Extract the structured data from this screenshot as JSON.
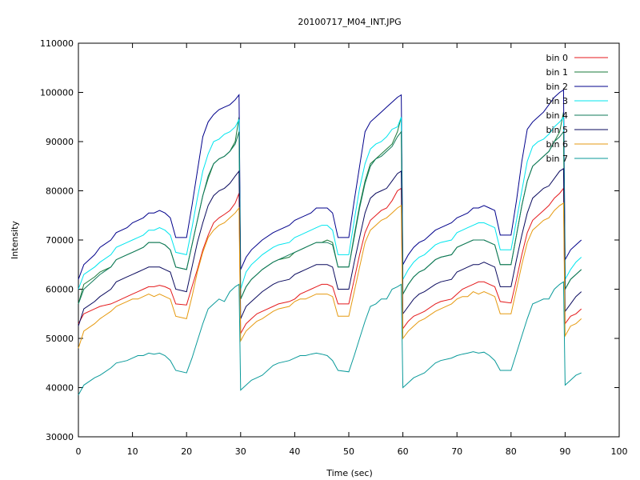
{
  "chart_data": {
    "type": "line",
    "title": "20100717_M04_INT.JPG",
    "xlabel": "Time (sec)",
    "ylabel": "Intensity",
    "xlim": [
      0,
      100
    ],
    "ylim": [
      30000,
      110000
    ],
    "x_ticks": [
      0,
      10,
      20,
      30,
      40,
      50,
      60,
      70,
      80,
      90,
      100
    ],
    "y_ticks": [
      30000,
      40000,
      50000,
      60000,
      70000,
      80000,
      90000,
      100000,
      110000
    ],
    "grid": false,
    "legend_position": "top-right",
    "x": [
      0,
      1,
      3,
      4,
      6,
      7,
      9,
      10,
      11,
      12,
      13,
      14,
      15,
      16,
      17,
      18,
      20,
      21,
      22,
      23,
      24,
      25,
      26,
      27,
      28,
      29,
      29.7,
      30,
      31,
      32,
      33,
      34,
      36,
      37,
      39,
      40,
      41,
      42,
      43,
      44,
      45,
      46,
      47,
      48,
      50,
      51,
      52,
      53,
      54,
      55,
      56,
      57,
      58,
      59,
      59.7,
      60,
      61,
      62,
      63,
      64,
      66,
      67,
      69,
      70,
      71,
      72,
      73,
      74,
      75,
      76,
      77,
      78,
      80,
      81,
      82,
      83,
      84,
      85,
      86,
      87,
      88,
      89,
      89.7,
      90,
      91,
      92,
      93
    ],
    "series": [
      {
        "name": "bin 0",
        "color": "#e41a1c",
        "values": [
          53000,
          55000,
          56000,
          56500,
          57000,
          57500,
          58500,
          59000,
          59500,
          60000,
          60500,
          60500,
          60800,
          60500,
          60000,
          57000,
          56800,
          60500,
          64000,
          68000,
          71000,
          73500,
          74500,
          75200,
          76000,
          77500,
          79500,
          51000,
          53000,
          54000,
          55000,
          55500,
          56500,
          57000,
          57500,
          58000,
          59000,
          59500,
          60000,
          60500,
          61000,
          61000,
          60500,
          57000,
          57000,
          62000,
          67000,
          71500,
          74000,
          75000,
          76000,
          76500,
          78000,
          80000,
          80500,
          52000,
          53500,
          54500,
          55000,
          55500,
          57000,
          57500,
          58000,
          59000,
          60000,
          60500,
          61000,
          61500,
          61500,
          61000,
          60500,
          57500,
          57200,
          62000,
          67000,
          71500,
          74000,
          75000,
          76000,
          77000,
          78500,
          79500,
          80500,
          53000,
          54500,
          55000,
          56000
        ]
      },
      {
        "name": "bin 1",
        "color": "#1a7a3a",
        "values": [
          57000,
          61000,
          62500,
          63500,
          64500,
          66000,
          67000,
          67500,
          68000,
          68500,
          69500,
          69500,
          69500,
          69000,
          68000,
          64500,
          64000,
          69000,
          74000,
          79000,
          82500,
          85500,
          86500,
          87000,
          88000,
          90000,
          95000,
          58000,
          60500,
          62000,
          63000,
          64000,
          65500,
          66000,
          66500,
          67500,
          68000,
          68500,
          69000,
          69500,
          69500,
          70000,
          69500,
          64500,
          64500,
          71000,
          77000,
          82000,
          85500,
          86500,
          87500,
          88500,
          89500,
          92000,
          95000,
          59000,
          61000,
          62500,
          63500,
          64000,
          66000,
          66500,
          67000,
          68500,
          69000,
          69500,
          70000,
          70000,
          70000,
          69500,
          69000,
          65000,
          65000,
          71000,
          77000,
          82000,
          85000,
          86000,
          87000,
          88000,
          90000,
          92000,
          96000,
          60000,
          62000,
          63000,
          64000
        ]
      },
      {
        "name": "bin 2",
        "color": "#00008b",
        "values": [
          62000,
          65000,
          67000,
          68500,
          70000,
          71500,
          72500,
          73500,
          74000,
          74500,
          75500,
          75500,
          76000,
          75500,
          74500,
          70500,
          70500,
          77000,
          84000,
          91000,
          94000,
          95500,
          96500,
          97000,
          97500,
          98500,
          99500,
          64000,
          66500,
          68000,
          69000,
          70000,
          71500,
          72000,
          73000,
          74000,
          74500,
          75000,
          75500,
          76500,
          76500,
          76500,
          75500,
          70500,
          70500,
          78000,
          85000,
          92000,
          94000,
          95000,
          96000,
          97000,
          98000,
          99000,
          99500,
          65000,
          67000,
          68500,
          69500,
          70000,
          72000,
          72500,
          73500,
          74500,
          75000,
          75500,
          76500,
          76500,
          77000,
          76500,
          76000,
          71000,
          71000,
          78000,
          86000,
          92500,
          94000,
          95000,
          96000,
          97500,
          99000,
          100000,
          100500,
          66000,
          68000,
          69000,
          70000
        ]
      },
      {
        "name": "bin 3",
        "color": "#00e5ee",
        "values": [
          60000,
          63000,
          64500,
          65500,
          67000,
          68500,
          69500,
          70000,
          70500,
          71000,
          72000,
          72000,
          72500,
          72000,
          71000,
          67500,
          67000,
          72500,
          78500,
          84000,
          87500,
          90000,
          90500,
          91500,
          92000,
          93000,
          94500,
          60000,
          63500,
          65000,
          66000,
          67000,
          68500,
          69000,
          69500,
          70500,
          71000,
          71500,
          72000,
          72500,
          73000,
          73000,
          72000,
          67000,
          67000,
          74000,
          80500,
          85500,
          88500,
          89500,
          90000,
          91000,
          92500,
          93000,
          95000,
          62000,
          64000,
          65500,
          66500,
          67000,
          69000,
          69500,
          70000,
          71500,
          72000,
          72500,
          73000,
          73500,
          73500,
          73000,
          72500,
          68000,
          68000,
          74000,
          80000,
          86000,
          89000,
          90000,
          90500,
          91500,
          93000,
          94000,
          95000,
          62000,
          64000,
          65500,
          66500
        ]
      },
      {
        "name": "bin 4",
        "color": "#0f7a5a",
        "values": [
          57000,
          60000,
          62000,
          63000,
          64500,
          66000,
          67000,
          67500,
          68000,
          68500,
          69500,
          69500,
          69500,
          69000,
          68000,
          64500,
          64000,
          69000,
          74000,
          79000,
          83000,
          85500,
          86500,
          87000,
          88000,
          89500,
          92000,
          58000,
          60500,
          62000,
          63000,
          64000,
          65500,
          66000,
          67000,
          67500,
          68000,
          68500,
          69000,
          69500,
          69500,
          69500,
          69000,
          64500,
          64500,
          70500,
          76500,
          81500,
          85000,
          86500,
          87000,
          88000,
          89000,
          91000,
          92000,
          59000,
          61000,
          62500,
          63500,
          64000,
          66000,
          66500,
          67000,
          68500,
          69000,
          69500,
          70000,
          70000,
          70000,
          69500,
          69000,
          65000,
          65000,
          71000,
          77000,
          82000,
          85000,
          86000,
          87000,
          88000,
          90000,
          91000,
          92000,
          60000,
          62000,
          63000,
          64000
        ]
      },
      {
        "name": "bin 5",
        "color": "#0a0a5e",
        "values": [
          52500,
          56000,
          57500,
          58500,
          60000,
          61500,
          62500,
          63000,
          63500,
          64000,
          64500,
          64500,
          64500,
          64000,
          63500,
          60000,
          59500,
          64500,
          69500,
          73500,
          77000,
          79000,
          80000,
          80500,
          81500,
          83000,
          84000,
          54000,
          56500,
          57500,
          58500,
          59500,
          61000,
          61500,
          62000,
          63000,
          63500,
          64000,
          64500,
          65000,
          65000,
          65000,
          64500,
          60000,
          60000,
          65500,
          70500,
          75500,
          78500,
          79500,
          80000,
          80500,
          82000,
          83500,
          84000,
          55000,
          56500,
          58000,
          59000,
          59500,
          61000,
          61500,
          62000,
          63500,
          64000,
          64500,
          65000,
          65000,
          65500,
          65000,
          64500,
          60500,
          60500,
          66000,
          71000,
          75500,
          78500,
          79500,
          80500,
          81000,
          82500,
          84000,
          84500,
          55500,
          57000,
          58500,
          59500
        ]
      },
      {
        "name": "bin 6",
        "color": "#e69a10",
        "values": [
          48000,
          51500,
          53000,
          54000,
          55500,
          56500,
          57500,
          58000,
          58000,
          58500,
          59000,
          58500,
          59000,
          58500,
          58000,
          54500,
          54000,
          58500,
          63500,
          67500,
          70500,
          72000,
          73000,
          73500,
          74500,
          75500,
          76500,
          49500,
          51500,
          52500,
          53500,
          54000,
          55500,
          56000,
          56500,
          57500,
          58000,
          58000,
          58500,
          59000,
          59000,
          59000,
          58500,
          54500,
          54500,
          59500,
          64500,
          69500,
          72000,
          73000,
          74000,
          74500,
          75500,
          76500,
          77000,
          50000,
          51500,
          52500,
          53500,
          54000,
          55500,
          56000,
          57000,
          58000,
          58500,
          58500,
          59500,
          59000,
          59500,
          59000,
          58500,
          55000,
          55000,
          60000,
          65000,
          69500,
          72000,
          73000,
          74000,
          74500,
          76000,
          77000,
          77500,
          50500,
          52500,
          53000,
          54000
        ]
      },
      {
        "name": "bin 7",
        "color": "#0a9a9a",
        "values": [
          38500,
          40500,
          42000,
          42500,
          44000,
          45000,
          45500,
          46000,
          46500,
          46500,
          47000,
          46800,
          47000,
          46500,
          45500,
          43500,
          43000,
          46000,
          49500,
          53000,
          56000,
          57000,
          58000,
          57500,
          59500,
          60500,
          61000,
          39500,
          40500,
          41500,
          42000,
          42500,
          44500,
          45000,
          45500,
          46000,
          46500,
          46500,
          46800,
          47000,
          46800,
          46500,
          45500,
          43500,
          43200,
          46500,
          50000,
          53500,
          56500,
          57000,
          58000,
          58000,
          60000,
          60500,
          61000,
          40000,
          41000,
          42000,
          42500,
          43000,
          45000,
          45500,
          46000,
          46500,
          46800,
          47000,
          47300,
          47000,
          47200,
          46500,
          45500,
          43500,
          43500,
          47000,
          50500,
          54000,
          57000,
          57500,
          58000,
          58000,
          60000,
          61000,
          61500,
          40500,
          41500,
          42500,
          43000
        ]
      }
    ]
  }
}
